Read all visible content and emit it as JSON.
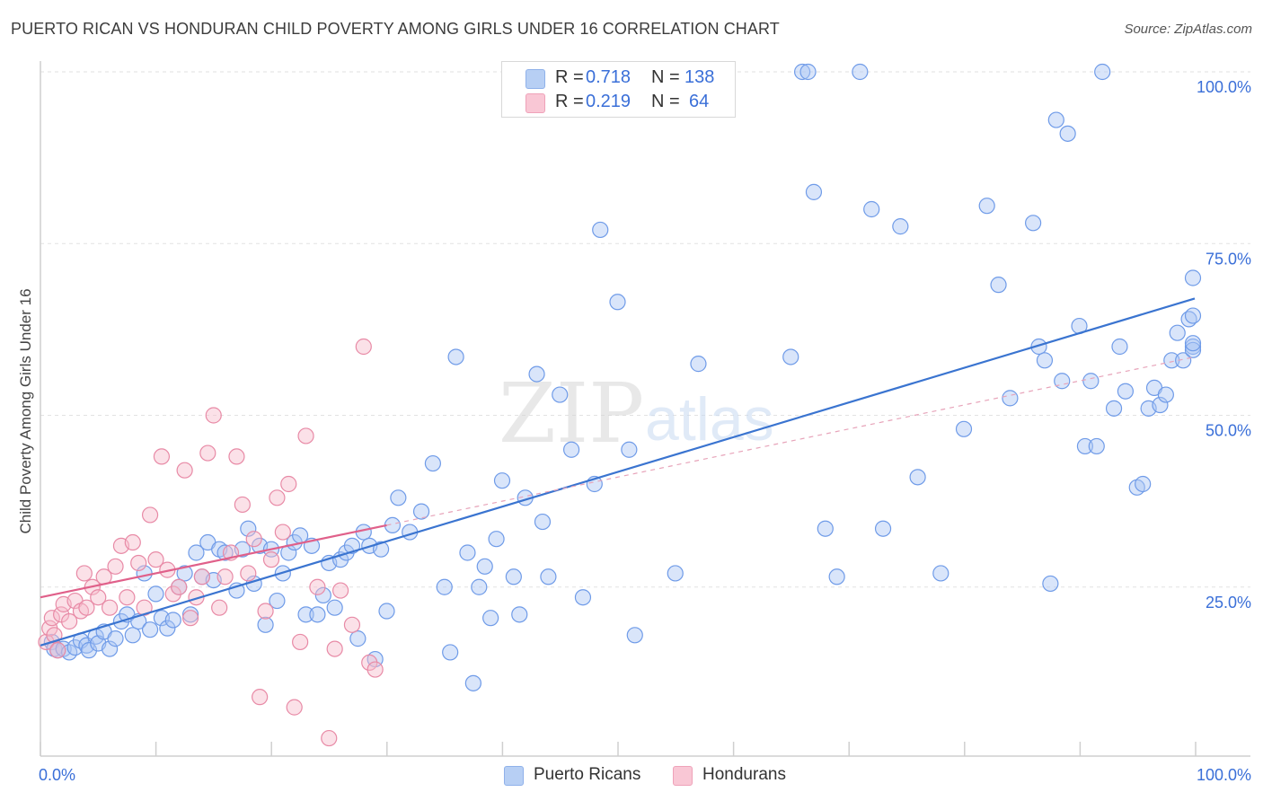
{
  "title": "PUERTO RICAN VS HONDURAN CHILD POVERTY AMONG GIRLS UNDER 16 CORRELATION CHART",
  "source": "Source: ZipAtlas.com",
  "watermark": {
    "zip": "ZIP",
    "atlas": "atlas"
  },
  "legend": {
    "r_label": "R =",
    "n_label": "N =",
    "series": [
      {
        "name": "Puerto Ricans",
        "r": "0.718",
        "n": "138",
        "color": "#6f9be8",
        "fill": "#aac6f3"
      },
      {
        "name": "Hondurans",
        "r": "0.219",
        "n": "64",
        "color": "#e88aa6",
        "fill": "#f7bccd"
      }
    ]
  },
  "chart_data": {
    "type": "scatter",
    "title": "PUERTO RICAN VS HONDURAN CHILD POVERTY AMONG GIRLS UNDER 16 CORRELATION CHART",
    "xlabel": "",
    "ylabel": "Child Poverty Among Girls Under 16",
    "xlim": [
      0,
      100
    ],
    "ylim": [
      0,
      100
    ],
    "x_tick_labels": [
      "0.0%",
      "100.0%"
    ],
    "y_ticks": [
      25,
      50,
      75,
      100
    ],
    "y_tick_labels": [
      "25.0%",
      "50.0%",
      "75.0%",
      "100.0%"
    ],
    "grid": true,
    "series": [
      {
        "name": "Puerto Ricans",
        "color": "#3a74d0",
        "trend": {
          "x": [
            0,
            100
          ],
          "y": [
            16.5,
            67.0
          ],
          "style": "solid"
        },
        "points": [
          [
            1,
            17
          ],
          [
            1.2,
            16
          ],
          [
            1.5,
            15.8
          ],
          [
            2,
            16
          ],
          [
            2.5,
            15.5
          ],
          [
            3,
            16.2
          ],
          [
            3.5,
            17.2
          ],
          [
            4,
            16.5
          ],
          [
            4.2,
            15.8
          ],
          [
            4.8,
            17.8
          ],
          [
            5,
            16.8
          ],
          [
            5.5,
            18.5
          ],
          [
            6,
            16
          ],
          [
            6.5,
            17.5
          ],
          [
            7,
            20
          ],
          [
            7.5,
            21
          ],
          [
            8,
            18
          ],
          [
            8.5,
            20
          ],
          [
            9,
            27
          ],
          [
            9.5,
            18.8
          ],
          [
            10,
            24
          ],
          [
            10.5,
            20.5
          ],
          [
            11,
            19
          ],
          [
            11.5,
            20.2
          ],
          [
            12,
            25
          ],
          [
            12.5,
            27
          ],
          [
            13,
            21
          ],
          [
            13.5,
            30
          ],
          [
            14,
            26.5
          ],
          [
            14.5,
            31.5
          ],
          [
            15,
            26
          ],
          [
            15.5,
            30.5
          ],
          [
            16,
            30
          ],
          [
            17,
            24.5
          ],
          [
            17.5,
            30.5
          ],
          [
            18,
            33.5
          ],
          [
            18.5,
            25.5
          ],
          [
            19,
            31
          ],
          [
            19.5,
            19.5
          ],
          [
            20,
            30.5
          ],
          [
            20.5,
            23
          ],
          [
            21,
            27
          ],
          [
            21.5,
            30
          ],
          [
            22,
            31.5
          ],
          [
            22.5,
            32.5
          ],
          [
            23,
            21
          ],
          [
            23.5,
            31
          ],
          [
            24,
            21
          ],
          [
            24.5,
            23.8
          ],
          [
            25,
            28.5
          ],
          [
            25.5,
            22
          ],
          [
            26,
            29
          ],
          [
            26.5,
            30
          ],
          [
            27,
            31
          ],
          [
            27.5,
            17.5
          ],
          [
            28,
            33
          ],
          [
            28.5,
            31
          ],
          [
            29,
            14.5
          ],
          [
            29.5,
            30.5
          ],
          [
            30,
            21.5
          ],
          [
            30.5,
            34
          ],
          [
            31,
            38
          ],
          [
            32,
            33
          ],
          [
            33,
            36
          ],
          [
            34,
            43
          ],
          [
            35,
            25
          ],
          [
            35.5,
            15.5
          ],
          [
            36,
            58.5
          ],
          [
            37,
            30
          ],
          [
            37.5,
            11
          ],
          [
            38,
            25
          ],
          [
            38.5,
            28
          ],
          [
            39,
            20.5
          ],
          [
            39.5,
            32
          ],
          [
            40,
            40.5
          ],
          [
            41,
            26.5
          ],
          [
            41.5,
            21
          ],
          [
            42,
            38
          ],
          [
            43,
            56
          ],
          [
            43.5,
            34.5
          ],
          [
            44,
            26.5
          ],
          [
            45,
            53
          ],
          [
            46,
            45
          ],
          [
            47,
            23.5
          ],
          [
            48,
            40
          ],
          [
            48.5,
            77
          ],
          [
            50,
            66.5
          ],
          [
            51,
            45
          ],
          [
            51.5,
            18
          ],
          [
            55,
            27
          ],
          [
            57,
            57.5
          ],
          [
            65,
            58.5
          ],
          [
            66,
            100
          ],
          [
            66.5,
            100
          ],
          [
            67,
            82.5
          ],
          [
            68,
            33.5
          ],
          [
            69,
            26.5
          ],
          [
            71,
            100
          ],
          [
            72,
            80
          ],
          [
            73,
            33.5
          ],
          [
            74.5,
            77.5
          ],
          [
            76,
            41
          ],
          [
            78,
            27
          ],
          [
            80,
            48
          ],
          [
            82,
            80.5
          ],
          [
            83,
            69
          ],
          [
            84,
            52.5
          ],
          [
            86,
            78
          ],
          [
            86.5,
            60
          ],
          [
            87,
            58
          ],
          [
            87.5,
            25.5
          ],
          [
            88,
            93
          ],
          [
            88.5,
            55
          ],
          [
            89,
            91
          ],
          [
            90,
            63
          ],
          [
            90.5,
            45.5
          ],
          [
            91,
            55
          ],
          [
            91.5,
            45.5
          ],
          [
            92,
            100
          ],
          [
            93,
            51
          ],
          [
            93.5,
            60
          ],
          [
            94,
            53.5
          ],
          [
            95,
            39.5
          ],
          [
            95.5,
            40
          ],
          [
            96,
            51
          ],
          [
            96.5,
            54
          ],
          [
            97,
            51.5
          ],
          [
            97.5,
            53
          ],
          [
            98,
            58
          ],
          [
            98.5,
            62
          ],
          [
            99,
            58
          ],
          [
            99.5,
            64
          ],
          [
            100,
            60
          ],
          [
            100.5,
            64.5
          ],
          [
            101,
            59.5
          ],
          [
            101.5,
            60.5
          ],
          [
            102,
            70
          ]
        ]
      },
      {
        "name": "Hondurans",
        "color": "#e0608a",
        "trend": {
          "x": [
            0,
            30
          ],
          "y": [
            23.5,
            34.0
          ],
          "style": "solid",
          "dashed_extension": {
            "x": [
              30,
              100
            ],
            "y": [
              34.0,
              58.5
            ]
          }
        },
        "points": [
          [
            0.5,
            17
          ],
          [
            0.8,
            19
          ],
          [
            1,
            20.5
          ],
          [
            1.2,
            18
          ],
          [
            1.5,
            15.8
          ],
          [
            1.8,
            21
          ],
          [
            2,
            22.5
          ],
          [
            2.5,
            20
          ],
          [
            3,
            23
          ],
          [
            3.5,
            21.5
          ],
          [
            3.8,
            27
          ],
          [
            4,
            22
          ],
          [
            4.5,
            25
          ],
          [
            5,
            23.5
          ],
          [
            5.5,
            26.5
          ],
          [
            6,
            22
          ],
          [
            6.5,
            28
          ],
          [
            7,
            31
          ],
          [
            7.5,
            23.5
          ],
          [
            8,
            31.5
          ],
          [
            8.5,
            28.5
          ],
          [
            9,
            22
          ],
          [
            9.5,
            35.5
          ],
          [
            10,
            29
          ],
          [
            10.5,
            44
          ],
          [
            11,
            27.5
          ],
          [
            11.5,
            24
          ],
          [
            12,
            25
          ],
          [
            12.5,
            42
          ],
          [
            13,
            20.5
          ],
          [
            13.5,
            23.5
          ],
          [
            14,
            26.5
          ],
          [
            14.5,
            44.5
          ],
          [
            15,
            50
          ],
          [
            15.5,
            22
          ],
          [
            16,
            26.5
          ],
          [
            16.5,
            30
          ],
          [
            17,
            44
          ],
          [
            17.5,
            37
          ],
          [
            18,
            27
          ],
          [
            18.5,
            32
          ],
          [
            19,
            9
          ],
          [
            19.5,
            21.5
          ],
          [
            20,
            29
          ],
          [
            20.5,
            38
          ],
          [
            21,
            33
          ],
          [
            21.5,
            40
          ],
          [
            22,
            7.5
          ],
          [
            22.5,
            17
          ],
          [
            23,
            47
          ],
          [
            24,
            25
          ],
          [
            25,
            3
          ],
          [
            25.5,
            16
          ],
          [
            26,
            24.5
          ],
          [
            27,
            19.5
          ],
          [
            28,
            60
          ],
          [
            28.5,
            14
          ],
          [
            29,
            13
          ]
        ]
      }
    ]
  }
}
